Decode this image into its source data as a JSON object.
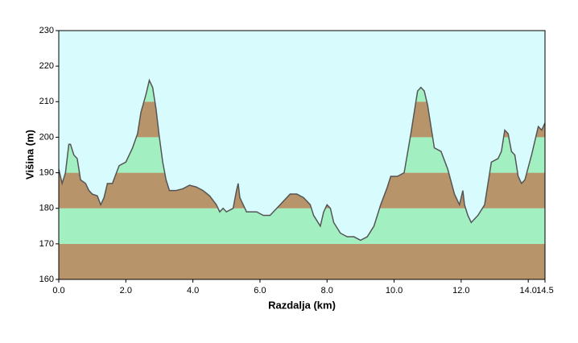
{
  "chart_data": {
    "type": "area",
    "xlabel": "Razdalja  (km)",
    "ylabel": "Višina (m)",
    "x": [
      0.0,
      0.1,
      0.2,
      0.3,
      0.35,
      0.45,
      0.55,
      0.65,
      0.8,
      0.9,
      1.0,
      1.15,
      1.25,
      1.35,
      1.45,
      1.6,
      1.8,
      2.0,
      2.2,
      2.35,
      2.45,
      2.6,
      2.7,
      2.8,
      2.9,
      3.0,
      3.1,
      3.2,
      3.3,
      3.5,
      3.7,
      3.9,
      4.1,
      4.3,
      4.5,
      4.7,
      4.8,
      4.9,
      5.0,
      5.2,
      5.3,
      5.35,
      5.4,
      5.6,
      5.9,
      6.1,
      6.3,
      6.5,
      6.7,
      6.9,
      7.1,
      7.3,
      7.5,
      7.6,
      7.8,
      7.9,
      8.0,
      8.1,
      8.2,
      8.4,
      8.6,
      8.8,
      9.0,
      9.2,
      9.4,
      9.6,
      9.8,
      9.9,
      10.1,
      10.3,
      10.5,
      10.7,
      10.8,
      10.9,
      11.0,
      11.1,
      11.2,
      11.4,
      11.6,
      11.8,
      11.95,
      12.05,
      12.1,
      12.2,
      12.3,
      12.5,
      12.7,
      12.8,
      12.9,
      13.1,
      13.2,
      13.3,
      13.4,
      13.5,
      13.6,
      13.7,
      13.8,
      13.9,
      14.1,
      14.3,
      14.4,
      14.5
    ],
    "values": [
      191,
      187,
      190,
      198,
      198,
      195,
      194,
      188,
      187,
      185,
      184,
      183.5,
      181,
      183,
      187,
      187,
      192,
      193,
      197,
      201,
      207,
      212,
      216,
      214,
      208,
      200,
      193,
      188,
      185,
      185,
      185.5,
      186.5,
      186,
      185,
      183.5,
      181,
      179,
      180,
      179,
      180,
      185,
      187,
      183,
      179,
      179,
      178,
      178,
      180,
      182,
      184,
      184,
      183,
      181,
      178,
      175,
      179,
      181,
      180,
      176,
      173,
      172,
      172,
      171,
      172,
      175,
      181,
      186,
      189,
      189,
      190,
      201,
      213,
      214,
      213,
      209,
      203,
      197,
      196,
      191,
      184,
      181,
      185,
      181,
      178,
      176,
      178,
      181,
      187,
      193,
      194,
      196,
      202,
      201,
      196,
      195,
      189,
      187,
      188,
      195,
      203,
      202,
      204
    ],
    "line_color": "#555555",
    "background": "#d8fbfd",
    "band_colors": [
      "#b8946a",
      "#a2f0c2"
    ],
    "xlim": [
      0,
      14.5
    ],
    "ylim": [
      160,
      230
    ],
    "xticks": [
      {
        "value": 0,
        "label": "0.0"
      },
      {
        "value": 2,
        "label": "2.0"
      },
      {
        "value": 4,
        "label": "4.0"
      },
      {
        "value": 6,
        "label": "6.0"
      },
      {
        "value": 8,
        "label": "8.0"
      },
      {
        "value": 10,
        "label": "10.0"
      },
      {
        "value": 12,
        "label": "12.0"
      },
      {
        "value": 14,
        "label": "14.0"
      },
      14.5
    ],
    "yticks": [
      160,
      170,
      180,
      190,
      200,
      210,
      220,
      230
    ]
  }
}
